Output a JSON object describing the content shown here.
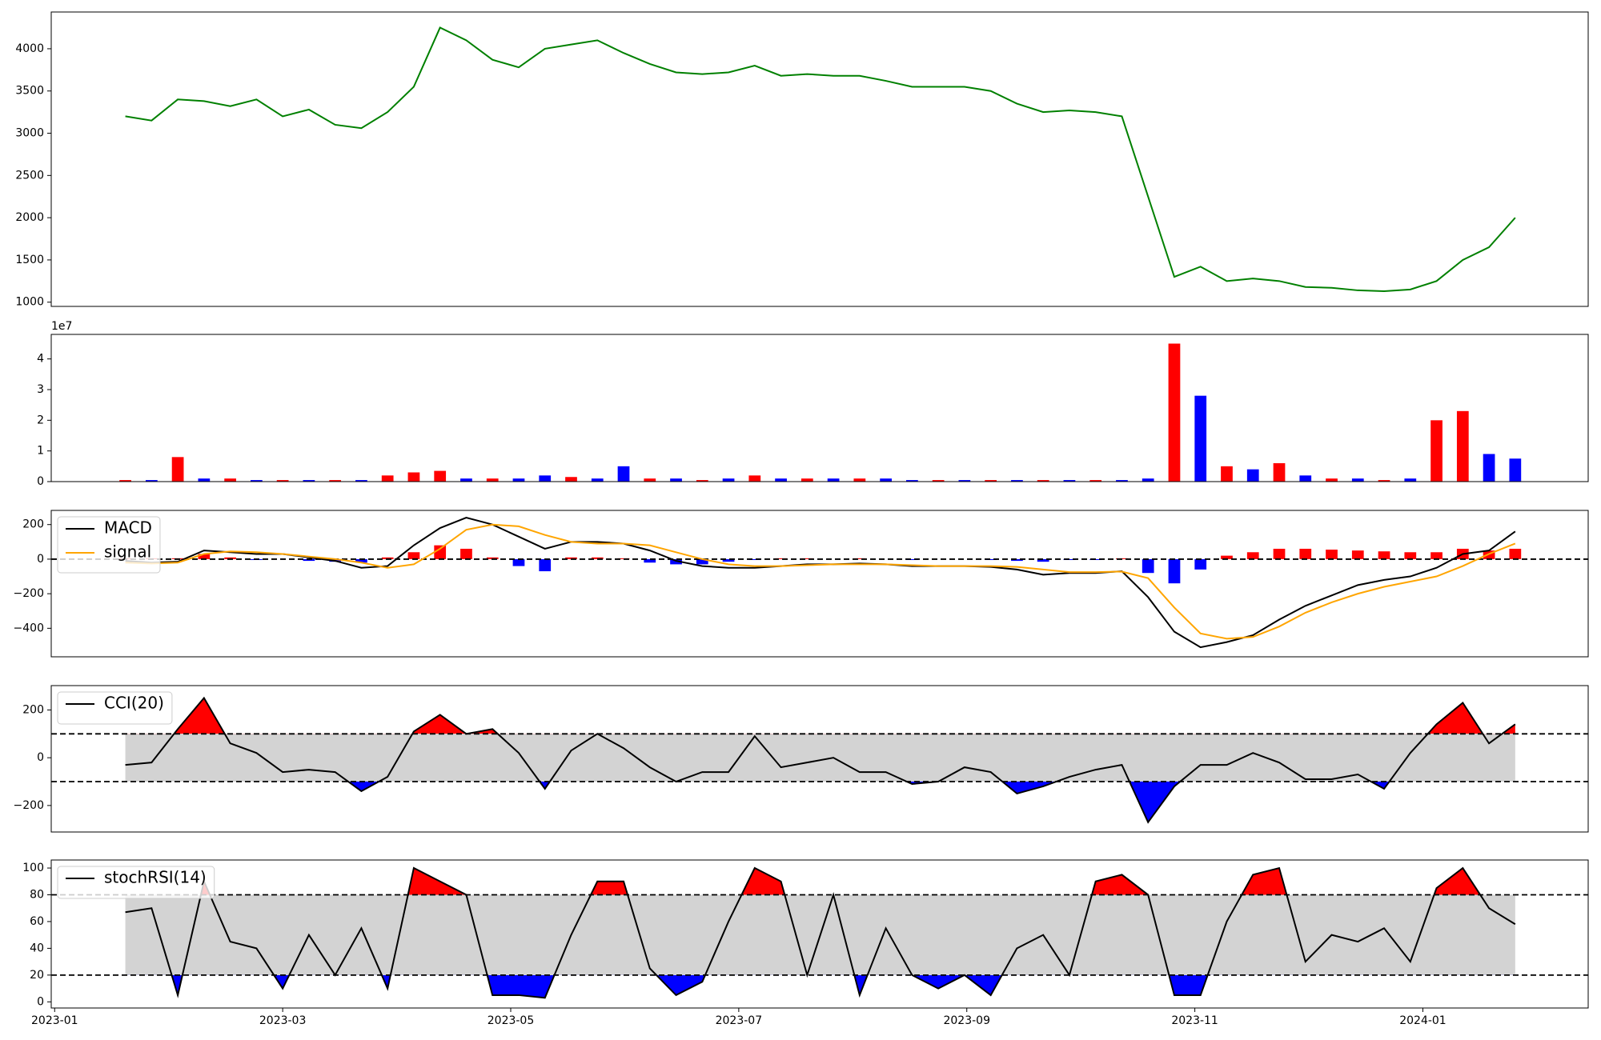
{
  "chart_data": [
    {
      "type": "line",
      "x": [
        0.62,
        0.85,
        1.08,
        1.31,
        1.54,
        1.77,
        2.0,
        2.23,
        2.46,
        2.69,
        2.92,
        3.15,
        3.38,
        3.61,
        3.84,
        4.07,
        4.3,
        4.53,
        4.76,
        4.99,
        5.22,
        5.45,
        5.68,
        5.91,
        6.14,
        6.37,
        6.6,
        6.83,
        7.06,
        7.29,
        7.52,
        7.75,
        7.98,
        8.21,
        8.44,
        8.67,
        8.9,
        9.13,
        9.36,
        9.59,
        9.82,
        10.05,
        10.28,
        10.51,
        10.74,
        10.97,
        11.2,
        11.43,
        11.66,
        11.89,
        12.12,
        12.35,
        12.58,
        12.81
      ],
      "xlim": [
        -0.03,
        13.45
      ],
      "ylim": [
        950,
        4435
      ],
      "yticks": [
        1000,
        1500,
        2000,
        2500,
        3000,
        3500,
        4000
      ],
      "series": [
        {
          "color": "green",
          "values": [
            3200,
            3150,
            3400,
            3380,
            3320,
            3400,
            3200,
            3280,
            3100,
            3060,
            3250,
            3550,
            4250,
            4100,
            3870,
            3780,
            4000,
            4050,
            4100,
            3950,
            3820,
            3720,
            3700,
            3720,
            3800,
            3680,
            3700,
            3680,
            3680,
            3620,
            3550,
            3550,
            3550,
            3500,
            3350,
            3250,
            3270,
            3250,
            3200,
            2250,
            1300,
            1420,
            1250,
            1280,
            1250,
            1180,
            1170,
            1140,
            1130,
            1150,
            1250,
            1500,
            1650,
            2000
          ]
        }
      ]
    },
    {
      "type": "bar",
      "x": [
        0.62,
        0.85,
        1.08,
        1.31,
        1.54,
        1.77,
        2.0,
        2.23,
        2.46,
        2.69,
        2.92,
        3.15,
        3.38,
        3.61,
        3.84,
        4.07,
        4.3,
        4.53,
        4.76,
        4.99,
        5.22,
        5.45,
        5.68,
        5.91,
        6.14,
        6.37,
        6.6,
        6.83,
        7.06,
        7.29,
        7.52,
        7.75,
        7.98,
        8.21,
        8.44,
        8.67,
        8.9,
        9.13,
        9.36,
        9.59,
        9.82,
        10.05,
        10.28,
        10.51,
        10.74,
        10.97,
        11.2,
        11.43,
        11.66,
        11.89,
        12.12,
        12.35,
        12.58,
        12.81
      ],
      "xlim": [
        -0.03,
        13.45
      ],
      "ylim": [
        0,
        4.8
      ],
      "yticks": [
        0,
        1,
        2,
        3,
        4
      ],
      "offset_label": "1e7",
      "values": [
        0.05,
        0.05,
        0.8,
        0.1,
        0.1,
        0.05,
        0.05,
        0.05,
        0.05,
        0.05,
        0.2,
        0.3,
        0.35,
        0.1,
        0.1,
        0.1,
        0.2,
        0.15,
        0.1,
        0.5,
        0.1,
        0.1,
        0.05,
        0.1,
        0.2,
        0.1,
        0.1,
        0.1,
        0.1,
        0.1,
        0.05,
        0.05,
        0.05,
        0.05,
        0.05,
        0.05,
        0.05,
        0.05,
        0.05,
        0.1,
        4.5,
        2.8,
        0.5,
        0.4,
        0.6,
        0.2,
        0.1,
        0.1,
        0.05,
        0.1,
        2.0,
        2.3,
        0.9,
        0.75
      ],
      "colors": [
        "red",
        "blue",
        "red",
        "blue",
        "red",
        "blue",
        "red",
        "blue",
        "red",
        "blue",
        "red",
        "red",
        "red",
        "blue",
        "red",
        "blue",
        "blue",
        "red",
        "blue",
        "blue",
        "red",
        "blue",
        "red",
        "blue",
        "red",
        "blue",
        "red",
        "blue",
        "red",
        "blue",
        "blue",
        "red",
        "blue",
        "red",
        "blue",
        "red",
        "blue",
        "red",
        "blue",
        "blue",
        "red",
        "blue",
        "red",
        "blue",
        "red",
        "blue",
        "red",
        "blue",
        "red",
        "blue",
        "red",
        "red",
        "blue",
        "blue"
      ]
    },
    {
      "type": "line",
      "x": [
        0.62,
        0.85,
        1.08,
        1.31,
        1.54,
        1.77,
        2.0,
        2.23,
        2.46,
        2.69,
        2.92,
        3.15,
        3.38,
        3.61,
        3.84,
        4.07,
        4.3,
        4.53,
        4.76,
        4.99,
        5.22,
        5.45,
        5.68,
        5.91,
        6.14,
        6.37,
        6.6,
        6.83,
        7.06,
        7.29,
        7.52,
        7.75,
        7.98,
        8.21,
        8.44,
        8.67,
        8.9,
        9.13,
        9.36,
        9.59,
        9.82,
        10.05,
        10.28,
        10.51,
        10.74,
        10.97,
        11.2,
        11.43,
        11.66,
        11.89,
        12.12,
        12.35,
        12.58,
        12.81
      ],
      "xlim": [
        -0.03,
        13.45
      ],
      "ylim": [
        -565,
        282
      ],
      "yticks": [
        {
          "value": -400,
          "label": "−400"
        },
        {
          "value": -200,
          "label": "−200"
        },
        0,
        200
      ],
      "hlines": [
        0
      ],
      "legend": "upper left",
      "histogram": [
        5,
        5,
        5,
        30,
        10,
        -5,
        0,
        -10,
        -15,
        -20,
        10,
        40,
        80,
        60,
        10,
        -40,
        -70,
        10,
        10,
        5,
        -20,
        -30,
        -30,
        -15,
        -5,
        5,
        5,
        0,
        5,
        0,
        -5,
        0,
        0,
        -5,
        -10,
        -15,
        -5,
        -5,
        5,
        -80,
        -140,
        -60,
        20,
        40,
        60,
        60,
        55,
        50,
        45,
        40,
        40,
        60,
        50,
        60
      ],
      "pos_color": "red",
      "neg_color": "blue",
      "series": [
        {
          "name": "MACD",
          "color": "black",
          "values": [
            -10,
            -20,
            -15,
            50,
            40,
            30,
            30,
            10,
            -10,
            -50,
            -40,
            80,
            180,
            240,
            200,
            130,
            60,
            100,
            100,
            90,
            50,
            -10,
            -40,
            -50,
            -50,
            -40,
            -30,
            -30,
            -25,
            -30,
            -40,
            -40,
            -40,
            -45,
            -60,
            -90,
            -80,
            -80,
            -70,
            -220,
            -420,
            -510,
            -480,
            -440,
            -350,
            -270,
            -210,
            -150,
            -120,
            -100,
            -50,
            30,
            50,
            160
          ]
        },
        {
          "name": "signal",
          "color": "orange",
          "values": [
            -20,
            -25,
            -20,
            30,
            45,
            40,
            30,
            15,
            0,
            -20,
            -50,
            -30,
            60,
            170,
            200,
            190,
            140,
            100,
            90,
            90,
            80,
            40,
            0,
            -30,
            -40,
            -40,
            -35,
            -30,
            -30,
            -30,
            -35,
            -40,
            -40,
            -40,
            -45,
            -60,
            -75,
            -75,
            -72,
            -110,
            -280,
            -430,
            -460,
            -450,
            -390,
            -310,
            -250,
            -200,
            -160,
            -130,
            -100,
            -40,
            30,
            90
          ]
        }
      ]
    },
    {
      "type": "line",
      "x": [
        0.62,
        0.85,
        1.08,
        1.31,
        1.54,
        1.77,
        2.0,
        2.23,
        2.46,
        2.69,
        2.92,
        3.15,
        3.38,
        3.61,
        3.84,
        4.07,
        4.3,
        4.53,
        4.76,
        4.99,
        5.22,
        5.45,
        5.68,
        5.91,
        6.14,
        6.37,
        6.6,
        6.83,
        7.06,
        7.29,
        7.52,
        7.75,
        7.98,
        8.21,
        8.44,
        8.67,
        8.9,
        9.13,
        9.36,
        9.59,
        9.82,
        10.05,
        10.28,
        10.51,
        10.74,
        10.97,
        11.2,
        11.43,
        11.66,
        11.89,
        12.12,
        12.35,
        12.58,
        12.81
      ],
      "xlim": [
        -0.03,
        13.45
      ],
      "ylim": [
        -311,
        302
      ],
      "yticks": [
        {
          "value": -200,
          "label": "−200"
        },
        0,
        200
      ],
      "hlines": [
        -100,
        100
      ],
      "band": [
        -100,
        100
      ],
      "band_color": "lightgray",
      "above_color": "red",
      "below_color": "blue",
      "legend": "upper left",
      "series": [
        {
          "name": "CCI(20)",
          "color": "black",
          "values": [
            -30,
            -20,
            120,
            250,
            60,
            20,
            -60,
            -50,
            -60,
            -140,
            -80,
            110,
            180,
            100,
            120,
            20,
            -130,
            30,
            100,
            40,
            -40,
            -100,
            -60,
            -60,
            90,
            -40,
            -20,
            0,
            -60,
            -60,
            -110,
            -100,
            -40,
            -60,
            -150,
            -120,
            -80,
            -50,
            -30,
            -270,
            -120,
            -30,
            -30,
            20,
            -20,
            -90,
            -90,
            -70,
            -130,
            20,
            140,
            230,
            60,
            140
          ]
        }
      ]
    },
    {
      "type": "line",
      "x": [
        0.62,
        0.85,
        1.08,
        1.31,
        1.54,
        1.77,
        2.0,
        2.23,
        2.46,
        2.69,
        2.92,
        3.15,
        3.38,
        3.61,
        3.84,
        4.07,
        4.3,
        4.53,
        4.76,
        4.99,
        5.22,
        5.45,
        5.68,
        5.91,
        6.14,
        6.37,
        6.6,
        6.83,
        7.06,
        7.29,
        7.52,
        7.75,
        7.98,
        8.21,
        8.44,
        8.67,
        8.9,
        9.13,
        9.36,
        9.59,
        9.82,
        10.05,
        10.28,
        10.51,
        10.74,
        10.97,
        11.2,
        11.43,
        11.66,
        11.89,
        12.12,
        12.35,
        12.58,
        12.81
      ],
      "xlim": [
        -0.03,
        13.45
      ],
      "ylim": [
        -4.6,
        106
      ],
      "xticks": [
        {
          "value": 0,
          "label": "2023-01"
        },
        {
          "value": 2,
          "label": "2023-03"
        },
        {
          "value": 4,
          "label": "2023-05"
        },
        {
          "value": 6,
          "label": "2023-07"
        },
        {
          "value": 8,
          "label": "2023-09"
        },
        {
          "value": 10,
          "label": "2023-11"
        },
        {
          "value": 12,
          "label": "2024-01"
        }
      ],
      "yticks": [
        0,
        20,
        40,
        60,
        80,
        100
      ],
      "hlines": [
        20,
        80
      ],
      "band": [
        20,
        80
      ],
      "band_color": "lightgray",
      "above_color": "red",
      "below_color": "blue",
      "legend": "upper left",
      "series": [
        {
          "name": "stochRSI(14)",
          "color": "black",
          "values": [
            67,
            70,
            5,
            90,
            45,
            40,
            10,
            50,
            20,
            55,
            10,
            100,
            90,
            80,
            5,
            5,
            3,
            50,
            90,
            90,
            25,
            5,
            15,
            60,
            100,
            90,
            20,
            80,
            5,
            55,
            20,
            10,
            20,
            5,
            40,
            50,
            20,
            90,
            95,
            80,
            5,
            5,
            60,
            95,
            100,
            30,
            50,
            45,
            55,
            30,
            85,
            100,
            70,
            58
          ]
        }
      ]
    }
  ]
}
